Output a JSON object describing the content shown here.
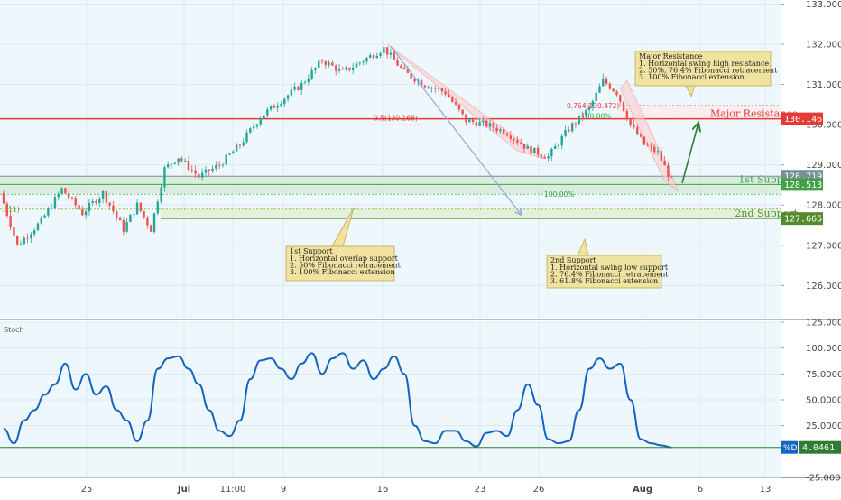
{
  "chart_data": [
    {
      "type": "candlestick",
      "name_hint": "",
      "ylim": [
        125.2,
        133.1
      ],
      "y_ticks": [
        "133.000",
        "132.000",
        "131.000",
        "130.000",
        "129.000",
        "128.000",
        "127.000",
        "126.000"
      ],
      "x_ticks": [
        "25",
        "Jul",
        "11:00",
        "9",
        "16",
        "23",
        "26",
        "Aug",
        "6",
        "13"
      ],
      "price_path": [
        {
          "i": 0,
          "p": 128.3
        },
        {
          "i": 5,
          "p": 127.0
        },
        {
          "i": 12,
          "p": 127.6
        },
        {
          "i": 18,
          "p": 128.4
        },
        {
          "i": 24,
          "p": 127.8
        },
        {
          "i": 30,
          "p": 128.3
        },
        {
          "i": 36,
          "p": 127.4
        },
        {
          "i": 40,
          "p": 128.0
        },
        {
          "i": 44,
          "p": 127.4
        },
        {
          "i": 48,
          "p": 128.9
        },
        {
          "i": 52,
          "p": 129.2
        },
        {
          "i": 58,
          "p": 128.7
        },
        {
          "i": 64,
          "p": 129.0
        },
        {
          "i": 70,
          "p": 129.5
        },
        {
          "i": 76,
          "p": 130.2
        },
        {
          "i": 82,
          "p": 130.6
        },
        {
          "i": 88,
          "p": 131.0
        },
        {
          "i": 94,
          "p": 131.6
        },
        {
          "i": 100,
          "p": 131.3
        },
        {
          "i": 106,
          "p": 131.6
        },
        {
          "i": 112,
          "p": 131.9
        },
        {
          "i": 118,
          "p": 131.3
        },
        {
          "i": 124,
          "p": 131.0
        },
        {
          "i": 130,
          "p": 130.8
        },
        {
          "i": 136,
          "p": 130.1
        },
        {
          "i": 142,
          "p": 130.0
        },
        {
          "i": 148,
          "p": 129.8
        },
        {
          "i": 154,
          "p": 129.4
        },
        {
          "i": 160,
          "p": 129.2
        },
        {
          "i": 166,
          "p": 129.9
        },
        {
          "i": 172,
          "p": 130.4
        },
        {
          "i": 176,
          "p": 131.1
        },
        {
          "i": 180,
          "p": 130.8
        },
        {
          "i": 184,
          "p": 130.0
        },
        {
          "i": 188,
          "p": 129.5
        },
        {
          "i": 192,
          "p": 129.3
        },
        {
          "i": 196,
          "p": 128.6
        }
      ],
      "levels": [
        {
          "price": 130.146,
          "label": "Major Resistance",
          "badge": "130.146",
          "color": "#e53935"
        },
        {
          "price": 128.719,
          "label": "",
          "badge": "128.719",
          "color": "#78909c"
        },
        {
          "price": 128.513,
          "label": "1st Support",
          "badge": "128.513",
          "color": "#43a047"
        },
        {
          "price": 127.665,
          "label": "2nd Support",
          "badge": "127.665",
          "color": "#558b2f"
        }
      ],
      "fib_labels": [
        {
          "text": "0.5(130.168)",
          "price": 130.168,
          "color": "#e53935"
        },
        {
          "text": "0.764(130.472)",
          "price": 130.472,
          "color": "#e53935"
        },
        {
          "text": "100.00%",
          "price": 130.22,
          "color": "#43a047"
        },
        {
          "text": "100.00%",
          "price": 128.27,
          "color": "#43a047"
        },
        {
          "text": ".911)",
          "price": 127.9,
          "color": "#558b2f"
        }
      ],
      "annotations": [
        {
          "title": "Major Resistance",
          "lines": [
            "1. Horizontal swing high resistance",
            "2. 50%, 76.4% Fibonacci retracement",
            "3. 100% Fibonacci extension"
          ]
        },
        {
          "title": "1st Support",
          "lines": [
            "1. Horizontal overlap support",
            "2. 50% Fibonacci retracement",
            "3. 100% Fibonacci extension"
          ]
        },
        {
          "title": "2nd Support",
          "lines": [
            "1. Horizontal swing low support",
            "2. 76.4% Fibonacci retracement",
            "3. 61.8% Fibonacci extension"
          ]
        }
      ],
      "colors": {
        "up": "#26a69a",
        "down": "#ef5350",
        "background": "#eef7fb"
      }
    },
    {
      "type": "line",
      "title": "Stoch",
      "ylim": [
        -25,
        125
      ],
      "y_ticks": [
        "125.0000",
        "100.0000",
        "75.0000",
        "50.0000",
        "25.0000",
        "-25.0000"
      ],
      "series": [
        {
          "name": "%D",
          "badge": "4.0461",
          "color": "#1565c0",
          "values": [
            {
              "i": 0,
              "v": 22
            },
            {
              "i": 3,
              "v": 8
            },
            {
              "i": 6,
              "v": 30
            },
            {
              "i": 9,
              "v": 40
            },
            {
              "i": 12,
              "v": 55
            },
            {
              "i": 15,
              "v": 65
            },
            {
              "i": 18,
              "v": 85
            },
            {
              "i": 21,
              "v": 60
            },
            {
              "i": 24,
              "v": 75
            },
            {
              "i": 27,
              "v": 55
            },
            {
              "i": 30,
              "v": 63
            },
            {
              "i": 33,
              "v": 40
            },
            {
              "i": 36,
              "v": 30
            },
            {
              "i": 39,
              "v": 10
            },
            {
              "i": 42,
              "v": 30
            },
            {
              "i": 45,
              "v": 80
            },
            {
              "i": 48,
              "v": 90
            },
            {
              "i": 51,
              "v": 92
            },
            {
              "i": 54,
              "v": 80
            },
            {
              "i": 57,
              "v": 65
            },
            {
              "i": 60,
              "v": 40
            },
            {
              "i": 63,
              "v": 20
            },
            {
              "i": 66,
              "v": 15
            },
            {
              "i": 69,
              "v": 30
            },
            {
              "i": 72,
              "v": 70
            },
            {
              "i": 75,
              "v": 88
            },
            {
              "i": 78,
              "v": 90
            },
            {
              "i": 81,
              "v": 80
            },
            {
              "i": 84,
              "v": 70
            },
            {
              "i": 87,
              "v": 85
            },
            {
              "i": 90,
              "v": 95
            },
            {
              "i": 93,
              "v": 75
            },
            {
              "i": 96,
              "v": 90
            },
            {
              "i": 99,
              "v": 95
            },
            {
              "i": 102,
              "v": 80
            },
            {
              "i": 105,
              "v": 88
            },
            {
              "i": 108,
              "v": 70
            },
            {
              "i": 111,
              "v": 80
            },
            {
              "i": 114,
              "v": 92
            },
            {
              "i": 117,
              "v": 75
            },
            {
              "i": 120,
              "v": 25
            },
            {
              "i": 123,
              "v": 10
            },
            {
              "i": 126,
              "v": 8
            },
            {
              "i": 129,
              "v": 20
            },
            {
              "i": 132,
              "v": 20
            },
            {
              "i": 135,
              "v": 10
            },
            {
              "i": 138,
              "v": 5
            },
            {
              "i": 141,
              "v": 18
            },
            {
              "i": 144,
              "v": 20
            },
            {
              "i": 147,
              "v": 15
            },
            {
              "i": 150,
              "v": 40
            },
            {
              "i": 153,
              "v": 65
            },
            {
              "i": 156,
              "v": 45
            },
            {
              "i": 159,
              "v": 12
            },
            {
              "i": 162,
              "v": 8
            },
            {
              "i": 165,
              "v": 10
            },
            {
              "i": 168,
              "v": 40
            },
            {
              "i": 171,
              "v": 80
            },
            {
              "i": 174,
              "v": 90
            },
            {
              "i": 177,
              "v": 80
            },
            {
              "i": 180,
              "v": 85
            },
            {
              "i": 183,
              "v": 50
            },
            {
              "i": 186,
              "v": 12
            },
            {
              "i": 189,
              "v": 8
            },
            {
              "i": 192,
              "v": 6
            },
            {
              "i": 195,
              "v": 4
            }
          ]
        }
      ],
      "reference_line": {
        "value": 4.0461,
        "color": "#2e7d32"
      }
    }
  ]
}
